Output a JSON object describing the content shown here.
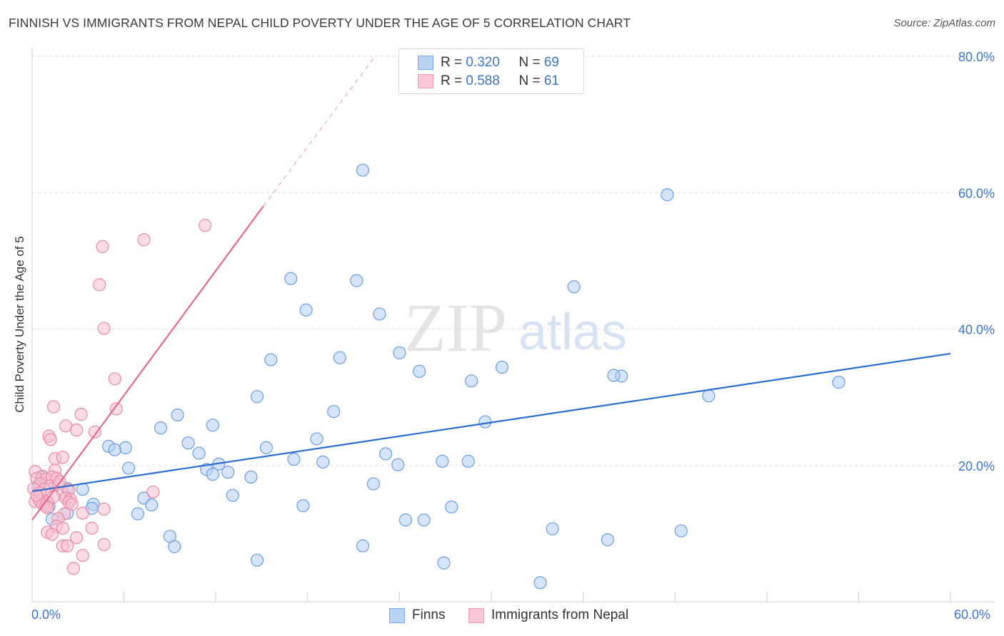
{
  "header": {
    "title": "FINNISH VS IMMIGRANTS FROM NEPAL CHILD POVERTY UNDER THE AGE OF 5 CORRELATION CHART",
    "source": "Source: ZipAtlas.com"
  },
  "watermark": {
    "zip": "ZIP",
    "atlas": "atlas"
  },
  "legend": {
    "finns": {
      "r_label": "R = ",
      "r_value": "0.320",
      "n_label": "N = ",
      "n_value": "69"
    },
    "nepal": {
      "r_label": "R = ",
      "r_value": "0.588",
      "n_label": "N = ",
      "n_value": "61"
    }
  },
  "x_axis": {
    "min_label": "0.0%",
    "max_label": "60.0%"
  },
  "colors": {
    "finns_fill": "#b3cef3",
    "finns_stroke": "#6c9ee0",
    "finns_line": "#2c6dd0",
    "nepal_fill": "#f7bfd0",
    "nepal_stroke": "#e88aa9",
    "nepal_line": "#e2688f",
    "tick_text": "#3d76c9"
  },
  "chart_data": {
    "type": "scatter",
    "title": "FINNISH VS IMMIGRANTS FROM NEPAL CHILD POVERTY UNDER THE AGE OF 5 CORRELATION CHART",
    "xlabel": "",
    "ylabel": "Child Poverty Under the Age of 5",
    "xlim": [
      0,
      60
    ],
    "ylim": [
      0,
      80
    ],
    "y_ticks": [
      20,
      40,
      60,
      80
    ],
    "y_tick_labels": [
      "20.0%",
      "40.0%",
      "60.0%",
      "80.0%"
    ],
    "x_tick_labels": [
      "0.0%",
      "60.0%"
    ],
    "series": [
      {
        "name": "Finns",
        "r": 0.32,
        "n": 69,
        "trend": {
          "x0": 0,
          "y0": 16.2,
          "x1": 60,
          "y1": 36.4,
          "dashed_to": null
        },
        "points": [
          [
            21.6,
            63.3
          ],
          [
            41.5,
            59.7
          ],
          [
            16.9,
            47.4
          ],
          [
            21.2,
            47.1
          ],
          [
            35.4,
            46.2
          ],
          [
            17.9,
            42.8
          ],
          [
            22.7,
            42.2
          ],
          [
            15.6,
            35.5
          ],
          [
            20.1,
            35.8
          ],
          [
            24.0,
            36.5
          ],
          [
            25.3,
            33.8
          ],
          [
            30.7,
            34.4
          ],
          [
            28.7,
            32.4
          ],
          [
            38.5,
            33.1
          ],
          [
            38.0,
            33.2
          ],
          [
            14.7,
            30.1
          ],
          [
            44.2,
            30.2
          ],
          [
            52.7,
            32.2
          ],
          [
            19.7,
            27.9
          ],
          [
            9.5,
            27.4
          ],
          [
            11.8,
            25.9
          ],
          [
            8.4,
            25.5
          ],
          [
            29.6,
            26.4
          ],
          [
            18.6,
            23.9
          ],
          [
            6.1,
            22.6
          ],
          [
            5.0,
            22.8
          ],
          [
            5.4,
            22.3
          ],
          [
            10.2,
            23.3
          ],
          [
            10.9,
            21.8
          ],
          [
            15.3,
            22.6
          ],
          [
            23.1,
            21.7
          ],
          [
            12.2,
            20.2
          ],
          [
            17.1,
            20.9
          ],
          [
            19.0,
            20.5
          ],
          [
            23.9,
            20.1
          ],
          [
            26.8,
            20.6
          ],
          [
            28.5,
            20.6
          ],
          [
            6.3,
            19.6
          ],
          [
            11.4,
            19.4
          ],
          [
            11.8,
            18.7
          ],
          [
            12.8,
            19.0
          ],
          [
            14.3,
            18.3
          ],
          [
            22.3,
            17.3
          ],
          [
            0.6,
            18.3
          ],
          [
            3.3,
            16.5
          ],
          [
            2.3,
            16.6
          ],
          [
            7.3,
            15.2
          ],
          [
            13.1,
            15.6
          ],
          [
            7.8,
            14.2
          ],
          [
            17.7,
            14.1
          ],
          [
            27.4,
            13.9
          ],
          [
            4.0,
            14.3
          ],
          [
            3.9,
            13.7
          ],
          [
            1.1,
            14.0
          ],
          [
            2.3,
            13.0
          ],
          [
            6.9,
            12.9
          ],
          [
            1.3,
            12.1
          ],
          [
            24.4,
            12.0
          ],
          [
            25.6,
            12.0
          ],
          [
            34.0,
            10.7
          ],
          [
            42.4,
            10.4
          ],
          [
            9.0,
            9.6
          ],
          [
            37.6,
            9.1
          ],
          [
            21.6,
            8.2
          ],
          [
            9.3,
            8.1
          ],
          [
            14.7,
            6.1
          ],
          [
            26.9,
            5.7
          ],
          [
            33.2,
            2.8
          ],
          [
            0.4,
            16.9
          ]
        ]
      },
      {
        "name": "Immigrants from Nepal",
        "r": 0.588,
        "n": 61,
        "trend": {
          "x0": 0,
          "y0": 12.0,
          "x1": 15.1,
          "y1": 58.0,
          "dashed_to": [
            22.4,
            80.0
          ]
        },
        "points": [
          [
            11.3,
            55.2
          ],
          [
            7.3,
            53.1
          ],
          [
            4.6,
            52.1
          ],
          [
            4.4,
            46.5
          ],
          [
            4.7,
            40.1
          ],
          [
            5.4,
            32.7
          ],
          [
            5.5,
            28.3
          ],
          [
            1.4,
            28.6
          ],
          [
            3.2,
            27.5
          ],
          [
            2.2,
            25.8
          ],
          [
            2.9,
            25.2
          ],
          [
            4.1,
            24.9
          ],
          [
            1.1,
            24.3
          ],
          [
            1.2,
            23.8
          ],
          [
            1.5,
            21.0
          ],
          [
            2.0,
            21.2
          ],
          [
            1.5,
            19.3
          ],
          [
            0.2,
            19.1
          ],
          [
            0.7,
            18.4
          ],
          [
            0.3,
            18.1
          ],
          [
            0.9,
            18.0
          ],
          [
            1.3,
            18.3
          ],
          [
            1.6,
            18.1
          ],
          [
            0.5,
            17.3
          ],
          [
            1.2,
            17.0
          ],
          [
            1.7,
            17.2
          ],
          [
            0.1,
            16.6
          ],
          [
            0.8,
            16.5
          ],
          [
            2.0,
            16.0
          ],
          [
            2.4,
            16.4
          ],
          [
            7.9,
            16.1
          ],
          [
            1.4,
            15.4
          ],
          [
            0.4,
            15.3
          ],
          [
            2.2,
            15.2
          ],
          [
            2.5,
            15.0
          ],
          [
            0.2,
            14.7
          ],
          [
            0.5,
            14.8
          ],
          [
            1.0,
            14.6
          ],
          [
            2.4,
            14.6
          ],
          [
            2.6,
            14.3
          ],
          [
            0.7,
            14.3
          ],
          [
            0.9,
            14.0
          ],
          [
            1.0,
            13.8
          ],
          [
            4.7,
            13.6
          ],
          [
            3.3,
            13.0
          ],
          [
            2.1,
            12.9
          ],
          [
            1.7,
            12.2
          ],
          [
            1.6,
            11.1
          ],
          [
            2.0,
            10.8
          ],
          [
            3.9,
            10.8
          ],
          [
            1.0,
            10.2
          ],
          [
            1.3,
            9.9
          ],
          [
            2.9,
            9.4
          ],
          [
            2.0,
            8.2
          ],
          [
            2.3,
            8.2
          ],
          [
            4.7,
            8.4
          ],
          [
            3.3,
            6.8
          ],
          [
            2.7,
            4.9
          ],
          [
            0.5,
            16.0
          ],
          [
            1.8,
            17.6
          ],
          [
            0.3,
            15.6
          ]
        ]
      }
    ]
  },
  "bottom_legend": [
    "Finns",
    "Immigrants from Nepal"
  ]
}
